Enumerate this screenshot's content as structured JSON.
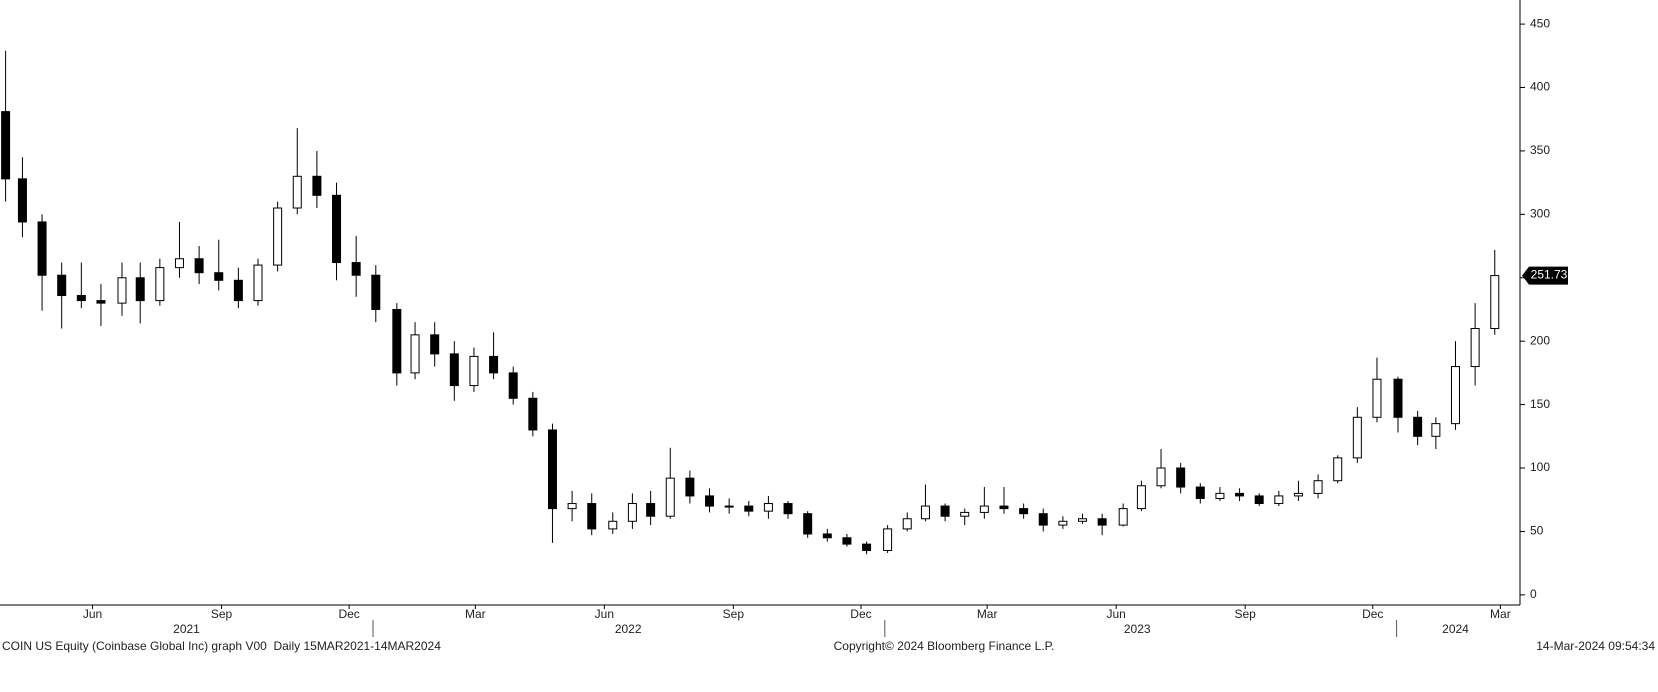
{
  "chart_data": {
    "type": "candlestick",
    "x": [
      "2021-04-14",
      "2021-04-26",
      "2021-05-10",
      "2021-05-24",
      "2021-06-07",
      "2021-06-21",
      "2021-07-06",
      "2021-07-19",
      "2021-08-02",
      "2021-08-16",
      "2021-08-30",
      "2021-09-13",
      "2021-09-27",
      "2021-10-11",
      "2021-10-25",
      "2021-11-08",
      "2021-11-22",
      "2021-12-06",
      "2021-12-20",
      "2022-01-03",
      "2022-01-18",
      "2022-01-31",
      "2022-02-14",
      "2022-02-28",
      "2022-03-14",
      "2022-03-28",
      "2022-04-11",
      "2022-04-25",
      "2022-05-09",
      "2022-05-23",
      "2022-06-06",
      "2022-06-21",
      "2022-07-05",
      "2022-07-18",
      "2022-08-01",
      "2022-08-15",
      "2022-08-29",
      "2022-09-12",
      "2022-09-26",
      "2022-10-10",
      "2022-10-24",
      "2022-11-07",
      "2022-11-21",
      "2022-12-05",
      "2022-12-19",
      "2023-01-03",
      "2023-01-17",
      "2023-01-30",
      "2023-02-13",
      "2023-02-27",
      "2023-03-13",
      "2023-03-27",
      "2023-04-10",
      "2023-04-24",
      "2023-05-08",
      "2023-05-22",
      "2023-06-05",
      "2023-06-20",
      "2023-07-03",
      "2023-07-17",
      "2023-07-31",
      "2023-08-14",
      "2023-08-28",
      "2023-09-11",
      "2023-09-25",
      "2023-10-09",
      "2023-10-23",
      "2023-11-06",
      "2023-11-20",
      "2023-12-04",
      "2023-12-18",
      "2024-01-02",
      "2024-01-16",
      "2024-01-29",
      "2024-02-12",
      "2024-02-26",
      "2024-03-11"
    ],
    "open": [
      381,
      328,
      294,
      252,
      236,
      232,
      230,
      250,
      232,
      258,
      265,
      254,
      248,
      232,
      260,
      305,
      330,
      315,
      262,
      252,
      225,
      175,
      205,
      190,
      165,
      188,
      175,
      155,
      130,
      68,
      72,
      52,
      58,
      72,
      62,
      92,
      78,
      70,
      70,
      66,
      72,
      64,
      48,
      45,
      40,
      35,
      52,
      60,
      70,
      62,
      65,
      70,
      68,
      64,
      55,
      58,
      60,
      55,
      68,
      86,
      100,
      85,
      76,
      80,
      78,
      72,
      78,
      80,
      90,
      108,
      140,
      170,
      140,
      125,
      135,
      180,
      210
    ],
    "high": [
      429,
      345,
      300,
      262,
      262,
      245,
      262,
      262,
      265,
      294,
      275,
      280,
      258,
      265,
      310,
      368,
      350,
      325,
      283,
      260,
      230,
      215,
      215,
      200,
      195,
      207,
      180,
      160,
      135,
      82,
      80,
      65,
      80,
      82,
      116,
      98,
      84,
      76,
      74,
      78,
      74,
      66,
      52,
      48,
      42,
      55,
      65,
      87,
      72,
      68,
      85,
      85,
      72,
      68,
      62,
      64,
      64,
      72,
      90,
      115,
      104,
      88,
      85,
      84,
      80,
      82,
      90,
      95,
      110,
      148,
      187,
      172,
      145,
      140,
      200,
      230,
      272
    ],
    "low": [
      310,
      282,
      224,
      210,
      226,
      212,
      220,
      214,
      228,
      250,
      245,
      240,
      226,
      228,
      255,
      300,
      305,
      248,
      235,
      215,
      165,
      170,
      180,
      153,
      160,
      170,
      150,
      125,
      41,
      58,
      47,
      48,
      52,
      55,
      60,
      72,
      65,
      64,
      62,
      60,
      60,
      45,
      42,
      38,
      32,
      33,
      50,
      58,
      58,
      55,
      60,
      64,
      60,
      50,
      52,
      56,
      47,
      54,
      66,
      84,
      80,
      72,
      74,
      74,
      70,
      70,
      74,
      76,
      88,
      104,
      136,
      128,
      118,
      115,
      130,
      165,
      205
    ],
    "close": [
      328,
      294,
      252,
      236,
      232,
      230,
      250,
      232,
      258,
      265,
      254,
      248,
      232,
      260,
      305,
      330,
      315,
      262,
      252,
      225,
      175,
      205,
      190,
      165,
      188,
      175,
      155,
      130,
      68,
      72,
      52,
      58,
      72,
      62,
      92,
      78,
      70,
      70,
      66,
      72,
      64,
      48,
      45,
      40,
      35,
      52,
      60,
      70,
      62,
      65,
      70,
      68,
      64,
      55,
      58,
      60,
      55,
      68,
      86,
      100,
      85,
      76,
      80,
      78,
      72,
      78,
      80,
      90,
      108,
      140,
      170,
      140,
      125,
      135,
      180,
      210,
      251.73
    ],
    "xlim": [
      "2021-04-10",
      "2024-03-29"
    ],
    "ylim": [
      -8,
      469
    ],
    "yticks": [
      0,
      50,
      100,
      150,
      200,
      250,
      300,
      350,
      400,
      450
    ],
    "xticks": [
      {
        "value": "2021-06-15",
        "label": "Jun"
      },
      {
        "value": "2021-09-15",
        "label": "Sep"
      },
      {
        "value": "2021-12-15",
        "label": "Dec"
      },
      {
        "value": "2022-03-15",
        "label": "Mar"
      },
      {
        "value": "2022-06-15",
        "label": "Jun"
      },
      {
        "value": "2022-09-15",
        "label": "Sep"
      },
      {
        "value": "2022-12-15",
        "label": "Dec"
      },
      {
        "value": "2023-03-15",
        "label": "Mar"
      },
      {
        "value": "2023-06-15",
        "label": "Jun"
      },
      {
        "value": "2023-09-15",
        "label": "Sep"
      },
      {
        "value": "2023-12-15",
        "label": "Dec"
      },
      {
        "value": "2024-03-15",
        "label": "Mar"
      }
    ],
    "year_labels": [
      {
        "value": "2021-08-21",
        "label": "2021"
      },
      {
        "value": "2022-07-02",
        "label": "2022"
      },
      {
        "value": "2023-06-30",
        "label": "2023"
      },
      {
        "value": "2024-02-12",
        "label": "2024"
      }
    ],
    "year_breaks": [
      "2022-01-01",
      "2023-01-01",
      "2024-01-01"
    ],
    "footer_left": "COIN US Equity (Coinbase Global Inc) graph V00  Daily 15MAR2021-14MAR2024",
    "footer_center": "Copyright© 2024 Bloomberg Finance L.P.",
    "footer_right": "14-Mar-2024 09:54:34",
    "color": "#000000"
  }
}
